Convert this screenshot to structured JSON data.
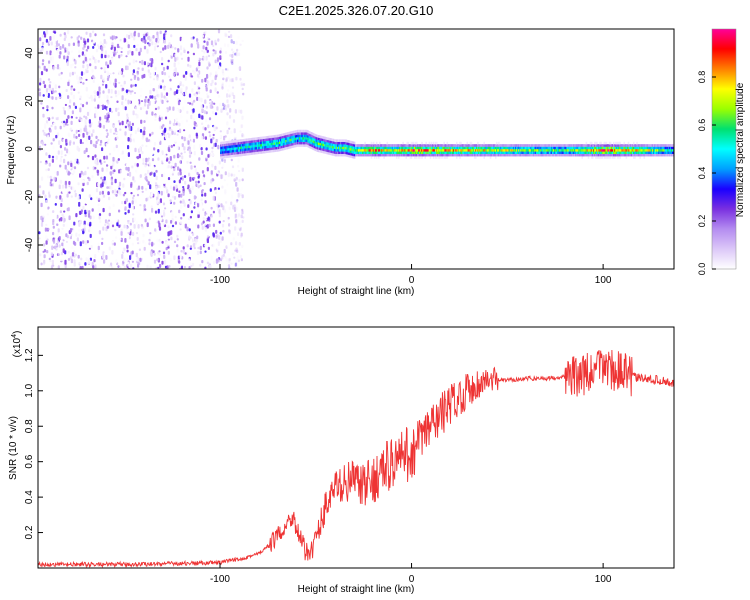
{
  "title": "C2E1.2025.326.07.20.G10",
  "chart_data": [
    {
      "type": "heatmap",
      "title": "C2E1.2025.326.07.20.G10",
      "xlabel": "Height of straight line (km)",
      "ylabel": "Frequency (Hz)",
      "xlim": [
        -195,
        137
      ],
      "ylim": [
        -50,
        50
      ],
      "xticks": [
        -100,
        0,
        100
      ],
      "yticks": [
        -40,
        -20,
        0,
        20,
        40
      ],
      "colorbar": {
        "label": "Normalized spectral amplitude",
        "range": [
          0,
          1
        ],
        "ticks": [
          "0.0",
          "0.2",
          "0.4",
          "0.6",
          "0.8"
        ],
        "tick_values": [
          0,
          0.2,
          0.4,
          0.6,
          0.8
        ],
        "colormap": [
          "#ffffff",
          "#dcc8f8",
          "#b48cf0",
          "#7a30e0",
          "#1a00ff",
          "#00a0ff",
          "#00ffff",
          "#00e070",
          "#9bff00",
          "#ffff00",
          "#ff8000",
          "#ff0000",
          "#ff0099"
        ]
      },
      "ridge": {
        "x": [
          -100,
          -90,
          -80,
          -70,
          -65,
          -60,
          -55,
          -50,
          -45,
          -40,
          -35,
          -30,
          -20,
          -10,
          0,
          20,
          40,
          60,
          80,
          100,
          120,
          137
        ],
        "frequency": [
          0,
          1,
          2,
          3,
          4,
          5,
          5,
          3,
          2,
          1,
          1,
          0,
          0,
          0,
          0,
          0,
          0,
          0,
          0,
          0,
          0,
          0
        ],
        "amplitude": [
          0.45,
          0.55,
          0.6,
          0.62,
          0.6,
          0.55,
          0.6,
          0.65,
          0.6,
          0.6,
          0.65,
          0.7,
          0.9,
          0.75,
          0.95,
          0.85,
          0.8,
          0.7,
          0.65,
          0.95,
          0.8,
          0.55
        ]
      },
      "noise_region_x": [
        -195,
        -100
      ]
    },
    {
      "type": "line",
      "title": "",
      "xlabel": "Height of straight line (km)",
      "ylabel": "SNR (10 * v/v)",
      "y_multiplier": "(x10",
      "y_multiplier_exp": "4",
      "xlim": [
        -195,
        137
      ],
      "ylim": [
        0,
        1.36
      ],
      "xticks": [
        -100,
        0,
        100
      ],
      "yticks": [
        0.2,
        0.4,
        0.6,
        0.8,
        1.0,
        1.2
      ],
      "yticklabels": [
        "0.2",
        "0.4",
        "0.6",
        "0.8",
        "1.0",
        "1.2"
      ],
      "color": "#ee3333",
      "series": [
        {
          "name": "SNR",
          "x": [
            -195,
            -150,
            -100,
            -90,
            -80,
            -75,
            -70,
            -65,
            -62,
            -60,
            -55,
            -50,
            -45,
            -40,
            -35,
            -30,
            -25,
            -20,
            -15,
            -10,
            -5,
            0,
            5,
            10,
            15,
            20,
            25,
            30,
            35,
            40,
            50,
            60,
            70,
            80,
            85,
            90,
            95,
            100,
            105,
            110,
            115,
            120,
            130,
            137
          ],
          "values": [
            0.02,
            0.02,
            0.03,
            0.05,
            0.08,
            0.12,
            0.18,
            0.25,
            0.3,
            0.22,
            0.08,
            0.15,
            0.35,
            0.45,
            0.48,
            0.5,
            0.45,
            0.5,
            0.55,
            0.6,
            0.62,
            0.65,
            0.72,
            0.8,
            0.86,
            0.92,
            0.97,
            1.01,
            1.04,
            1.06,
            1.06,
            1.07,
            1.07,
            1.08,
            1.08,
            1.09,
            1.1,
            1.15,
            1.12,
            1.1,
            1.08,
            1.07,
            1.06,
            1.04
          ]
        }
      ]
    }
  ]
}
